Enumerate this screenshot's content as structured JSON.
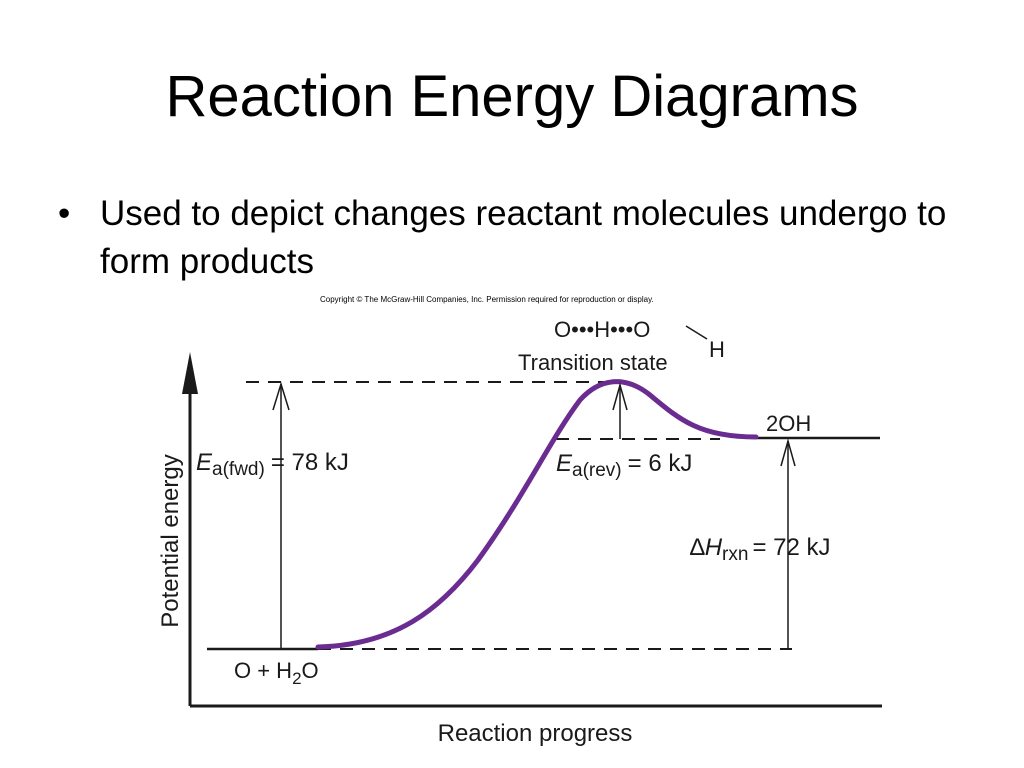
{
  "slide": {
    "title": "Reaction Energy Diagrams",
    "bullets": [
      "Used to depict changes reactant molecules undergo to form products"
    ],
    "bullet_symbol": "•"
  },
  "figure": {
    "copyright": "Copyright © The McGraw-Hill Companies, Inc. Permission required for reproduction or display.",
    "y_axis_label": "Potential energy",
    "x_axis_label": "Reaction progress",
    "reactants": {
      "main": "O + H",
      "sub": "2",
      "tail": "O"
    },
    "products": "2OH",
    "transition_state": {
      "label": "Transition state",
      "structure": "O•••H•••O",
      "structure_h": "H"
    },
    "ea_fwd": {
      "symbol": "E",
      "sub": "a(fwd)",
      "value": "= 78 kJ"
    },
    "ea_rev": {
      "symbol": "E",
      "sub": "a(rev)",
      "value": "= 6 kJ"
    },
    "dh_rxn": {
      "delta": "∆",
      "symbol": "H",
      "sub": "rxn",
      "value": "= 72 kJ"
    },
    "curve_color": "#6a2c91"
  }
}
